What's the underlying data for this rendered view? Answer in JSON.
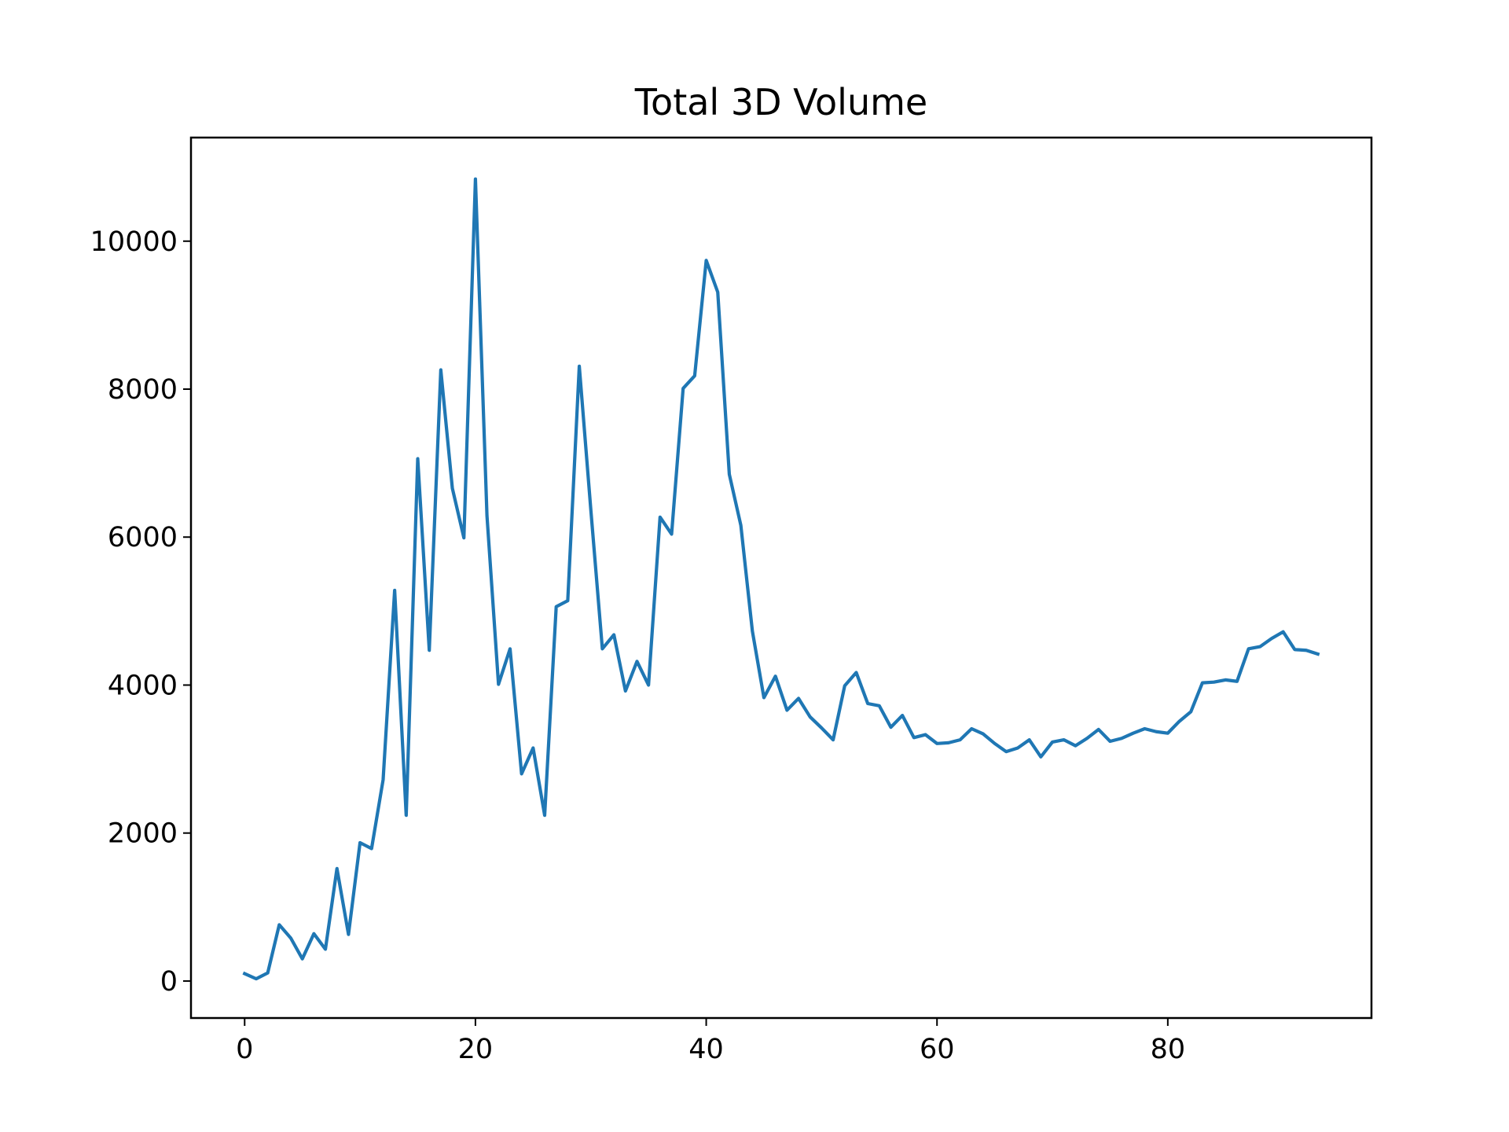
{
  "chart_data": {
    "type": "line",
    "title": "Total 3D Volume",
    "xlabel": "",
    "ylabel": "",
    "xlim": [
      -4.65,
      97.65
    ],
    "ylim": [
      -500,
      11400
    ],
    "grid": false,
    "xticks": [
      0,
      20,
      40,
      60,
      80
    ],
    "xtick_labels": [
      "0",
      "20",
      "40",
      "60",
      "80"
    ],
    "yticks": [
      0,
      2000,
      4000,
      6000,
      8000,
      10000
    ],
    "ytick_labels": [
      "0",
      "2000",
      "4000",
      "6000",
      "8000",
      "10000"
    ],
    "series": [
      {
        "color": "#1f77b4",
        "x": [
          0,
          1,
          2,
          3,
          4,
          5,
          6,
          7,
          8,
          9,
          10,
          11,
          12,
          13,
          14,
          15,
          16,
          17,
          18,
          19,
          20,
          21,
          22,
          23,
          24,
          25,
          26,
          27,
          28,
          29,
          30,
          31,
          32,
          33,
          34,
          35,
          36,
          37,
          38,
          39,
          40,
          41,
          42,
          43,
          44,
          45,
          46,
          47,
          48,
          49,
          50,
          51,
          52,
          53,
          54,
          55,
          56,
          57,
          58,
          59,
          60,
          61,
          62,
          63,
          64,
          65,
          66,
          67,
          68,
          69,
          70,
          71,
          72,
          73,
          74,
          75,
          76,
          77,
          78,
          79,
          80,
          81,
          82,
          83,
          84,
          85,
          86,
          87,
          88,
          89,
          90,
          91,
          92,
          93
        ],
        "values": [
          100,
          30,
          110,
          760,
          580,
          300,
          640,
          430,
          1520,
          630,
          1870,
          1790,
          2720,
          5280,
          2240,
          7060,
          4470,
          8260,
          6660,
          5990,
          10840,
          6290,
          4010,
          4490,
          2800,
          3150,
          2240,
          5060,
          5140,
          8310,
          6370,
          4490,
          4680,
          3920,
          4320,
          4000,
          6270,
          6040,
          8010,
          8180,
          9740,
          9310,
          6850,
          6160,
          4730,
          3830,
          4120,
          3660,
          3820,
          3570,
          3420,
          3260,
          3990,
          4170,
          3750,
          3720,
          3430,
          3590,
          3290,
          3330,
          3210,
          3220,
          3260,
          3410,
          3340,
          3210,
          3100,
          3150,
          3260,
          3030,
          3230,
          3260,
          3180,
          3280,
          3400,
          3240,
          3280,
          3350,
          3410,
          3370,
          3350,
          3510,
          3640,
          4030,
          4040,
          4070,
          4050,
          4490,
          4520,
          4630,
          4720,
          4480,
          4470,
          4420
        ]
      }
    ]
  }
}
